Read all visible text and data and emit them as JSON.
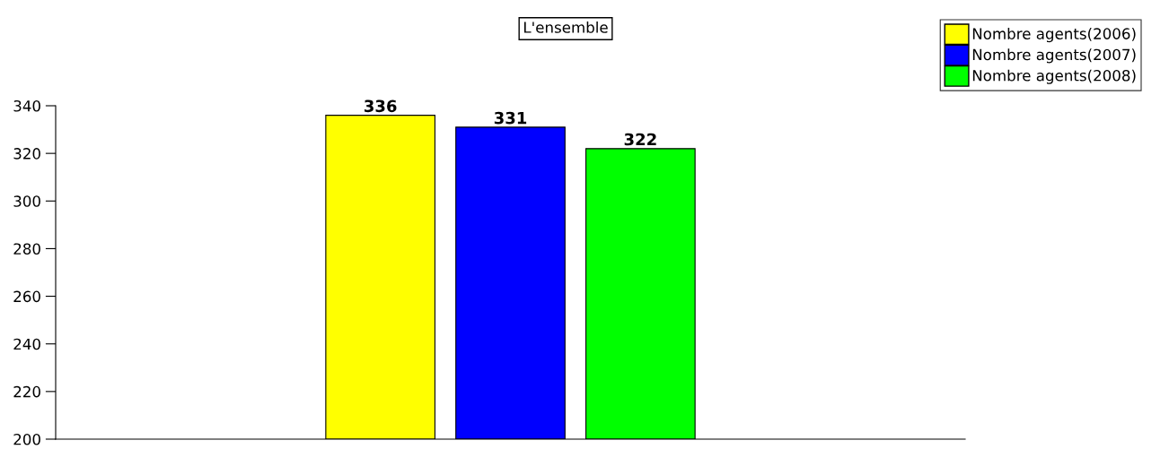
{
  "chart_data": {
    "type": "bar",
    "title": "L'ensemble",
    "categories": [
      null
    ],
    "series": [
      {
        "name": "Nombre agents(2006)",
        "color": "#ffff00",
        "values": [
          336
        ]
      },
      {
        "name": "Nombre agents(2007)",
        "color": "#0000ff",
        "values": [
          331
        ]
      },
      {
        "name": "Nombre agents(2008)",
        "color": "#00ff00",
        "values": [
          322
        ]
      }
    ],
    "ylim": [
      200,
      340
    ],
    "yticks": [
      200,
      220,
      240,
      260,
      280,
      300,
      320,
      340
    ],
    "data_labels": true,
    "legend": "top right",
    "grid": false
  }
}
